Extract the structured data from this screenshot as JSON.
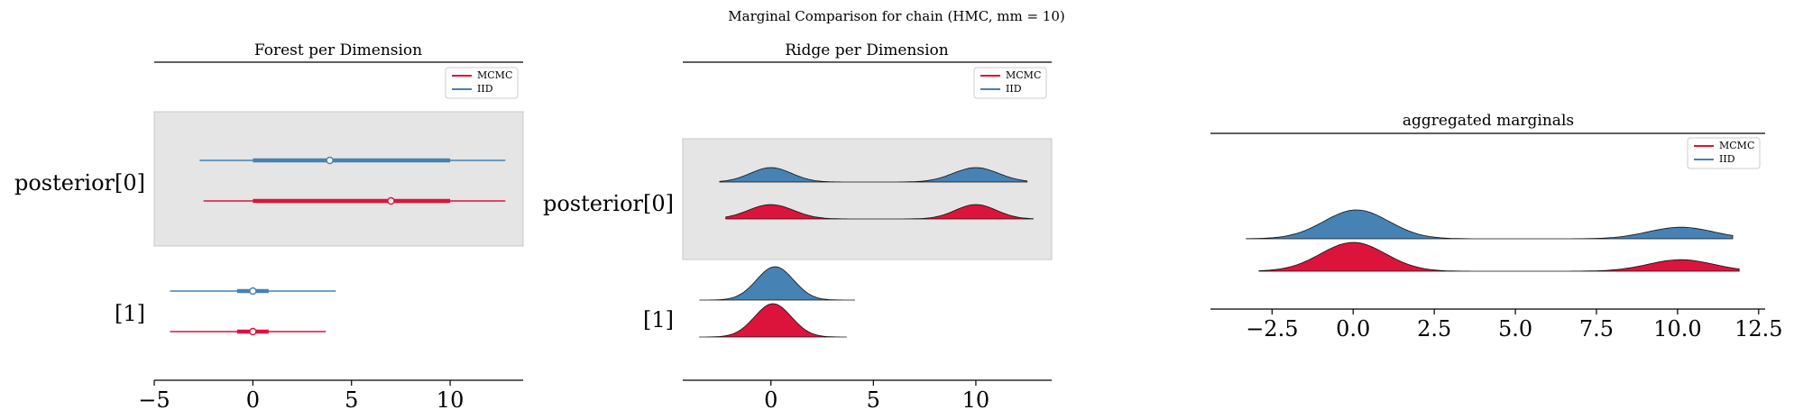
{
  "figure": {
    "suptitle": "Marginal Comparison for chain (HMC, mm = 10)"
  },
  "colors": {
    "mcmc": "#dc143c",
    "iid": "#4682b4",
    "band": "#e5e5e5",
    "band_edge": "#c8c8c8",
    "axis": "#000000"
  },
  "legend": {
    "entries": [
      "MCMC",
      "IID"
    ]
  },
  "chart_data": [
    {
      "type": "forest",
      "title": "Forest per Dimension",
      "xlim": [
        -5,
        13.7
      ],
      "xticks": [
        -5,
        0,
        5,
        10
      ],
      "xtick_labels": [
        "−5",
        "0",
        "5",
        "10"
      ],
      "row_labels": [
        "posterior[0]",
        "[1]"
      ],
      "series": [
        {
          "name": "IID",
          "color": "#4682b4",
          "rows": [
            {
              "thin": [
                -2.7,
                12.8
              ],
              "thick": [
                0,
                10
              ],
              "point": 3.9
            },
            {
              "thin": [
                -4.2,
                4.2
              ],
              "thick": [
                -0.8,
                0.8
              ],
              "point": 0
            }
          ]
        },
        {
          "name": "MCMC",
          "color": "#dc143c",
          "rows": [
            {
              "thin": [
                -2.5,
                12.8
              ],
              "thick": [
                0,
                10
              ],
              "point": 7
            },
            {
              "thin": [
                -4.2,
                3.7
              ],
              "thick": [
                -0.8,
                0.8
              ],
              "point": 0
            }
          ]
        }
      ]
    },
    {
      "type": "ridge",
      "title": "Ridge per Dimension",
      "xlim": [
        -4.3,
        13.7
      ],
      "xticks": [
        0,
        5,
        10
      ],
      "xtick_labels": [
        "0",
        "5",
        "10"
      ],
      "row_labels": [
        "posterior[0]",
        "[1]"
      ],
      "series": [
        {
          "name": "IID",
          "color": "#4682b4",
          "rows": [
            {
              "range": [
                -2.5,
                12.5
              ],
              "peaks": [
                [
                  0,
                  1,
                  1.0
                ],
                [
                  10,
                  1.1,
                  1.0
                ]
              ]
            },
            {
              "range": [
                -3.5,
                4.1
              ],
              "peaks": [
                [
                  0.2,
                  0.9,
                  1.0
                ]
              ]
            }
          ]
        },
        {
          "name": "MCMC",
          "color": "#dc143c",
          "rows": [
            {
              "range": [
                -2.2,
                12.8
              ],
              "peaks": [
                [
                  0,
                  1.1,
                  1.0
                ],
                [
                  10,
                  1.0,
                  1.0
                ]
              ]
            },
            {
              "range": [
                -3.5,
                3.7
              ],
              "peaks": [
                [
                  0.1,
                  0.9,
                  1.0
                ]
              ]
            }
          ]
        }
      ]
    },
    {
      "type": "ridge",
      "title": "aggregated marginals",
      "xlim": [
        -4.4,
        12.7
      ],
      "xticks": [
        -2.5,
        0,
        2.5,
        5,
        7.5,
        10,
        12.5
      ],
      "xtick_labels": [
        "−2.5",
        "0.0",
        "2.5",
        "5.0",
        "7.5",
        "10.0",
        "12.5"
      ],
      "series": [
        {
          "name": "IID",
          "color": "#4682b4",
          "range": [
            -3.3,
            11.7
          ],
          "peaks": [
            [
              0.1,
              1.0,
              1.0
            ],
            [
              10.1,
              1.0,
              0.4
            ]
          ]
        },
        {
          "name": "MCMC",
          "color": "#dc143c",
          "range": [
            -2.9,
            11.9
          ],
          "peaks": [
            [
              0,
              1.0,
              1.0
            ],
            [
              10.1,
              1.0,
              0.4
            ]
          ]
        }
      ]
    }
  ]
}
